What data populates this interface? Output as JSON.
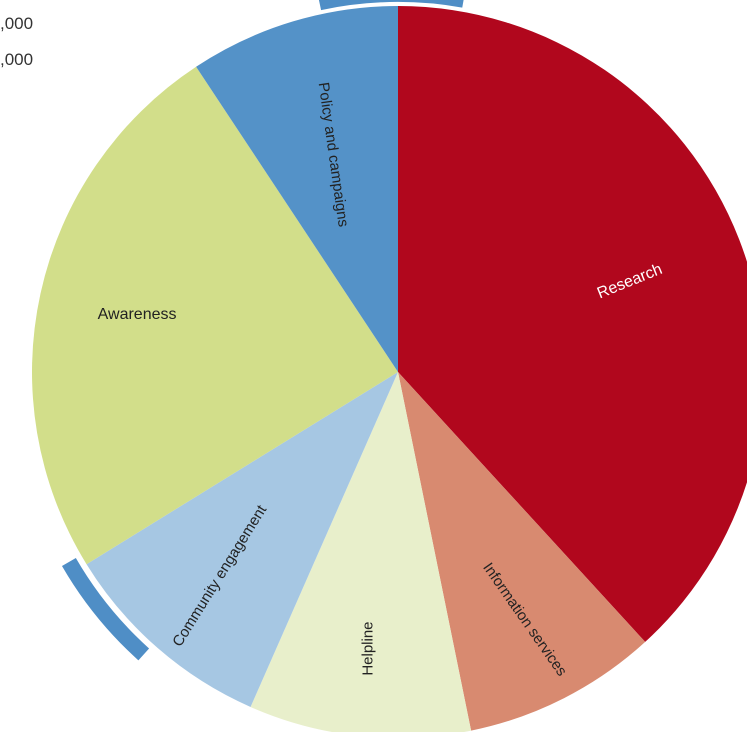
{
  "legend_fragments": [
    ",000",
    ",000"
  ],
  "colors": {
    "ring": "#4f8ec6"
  },
  "chart_data": {
    "type": "pie",
    "title": "",
    "start": "12 o'clock",
    "direction": "clockwise",
    "slices": [
      {
        "label": "Research",
        "value": 38.2,
        "color": "#b1071d",
        "label_color": "#ffffff"
      },
      {
        "label": "Information services",
        "value": 8.6,
        "color": "#d88a70",
        "label_color": "#222222"
      },
      {
        "label": "Helpline",
        "value": 9.8,
        "color": "#e8efcb",
        "label_color": "#222222"
      },
      {
        "label": "Community engagement",
        "value": 9.6,
        "color": "#a6c7e3",
        "label_color": "#222222"
      },
      {
        "label": "Awareness",
        "value": 24.5,
        "color": "#d2de8a",
        "label_color": "#222222"
      },
      {
        "label": "Policy and campaigns",
        "value": 9.3,
        "color": "#5492c8",
        "label_color": "#222222"
      }
    ]
  }
}
